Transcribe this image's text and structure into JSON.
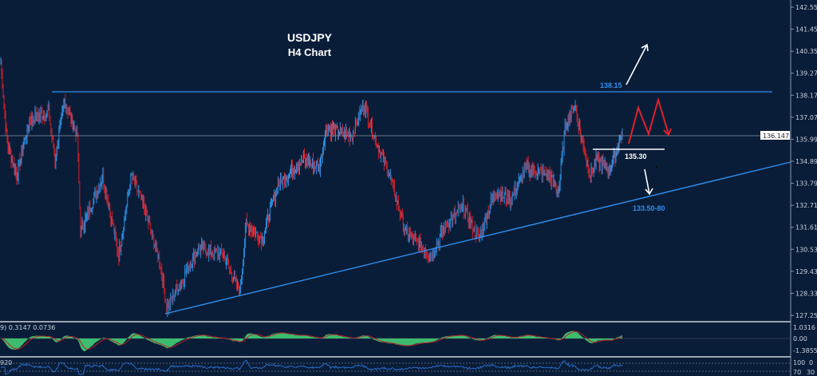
{
  "chart_data": {
    "type": "candlestick",
    "title": "USDJPY",
    "subtitle": "H4 Chart",
    "symbol": "USDJPY",
    "timeframe": "H4",
    "ylim": [
      127.25,
      142.55
    ],
    "y_ticks": [
      "142.550",
      "141.450",
      "140.350",
      "139.270",
      "138.170",
      "137.070",
      "135.990",
      "134.890",
      "133.790",
      "132.710",
      "131.610",
      "130.530",
      "129.430",
      "128.330",
      "127.250"
    ],
    "current_price": "136.147",
    "price_path_bar_price": [
      [
        0,
        139.74
      ],
      [
        2,
        135.77
      ],
      [
        5,
        134.19
      ],
      [
        9,
        136.96
      ],
      [
        15,
        137.36
      ],
      [
        17,
        134.98
      ],
      [
        20,
        137.95
      ],
      [
        24,
        136.17
      ],
      [
        25,
        131.41
      ],
      [
        32,
        134.19
      ],
      [
        37,
        130.22
      ],
      [
        41,
        134.19
      ],
      [
        45,
        132.6
      ],
      [
        50,
        129.83
      ],
      [
        52,
        127.65
      ],
      [
        57,
        129.03
      ],
      [
        62,
        130.62
      ],
      [
        70,
        130.22
      ],
      [
        75,
        128.44
      ],
      [
        77,
        131.81
      ],
      [
        82,
        131.02
      ],
      [
        87,
        133.79
      ],
      [
        95,
        134.98
      ],
      [
        100,
        134.58
      ],
      [
        102,
        136.56
      ],
      [
        110,
        136.17
      ],
      [
        114,
        137.75
      ],
      [
        117,
        136.17
      ],
      [
        122,
        134.19
      ],
      [
        127,
        131.41
      ],
      [
        135,
        130.22
      ],
      [
        140,
        131.81
      ],
      [
        145,
        132.6
      ],
      [
        150,
        131.02
      ],
      [
        155,
        133.39
      ],
      [
        160,
        133.0
      ],
      [
        165,
        134.58
      ],
      [
        172,
        134.19
      ],
      [
        175,
        133.39
      ],
      [
        177,
        136.56
      ],
      [
        180,
        137.75
      ],
      [
        182,
        136.17
      ],
      [
        185,
        134.19
      ],
      [
        187,
        134.98
      ],
      [
        191,
        134.39
      ],
      [
        195,
        136.37
      ]
    ],
    "annotations": {
      "resistance_label": "138.15",
      "support_label": "135.30",
      "target_label": "133.50-80"
    },
    "colors": {
      "up": "#2b8fe0",
      "down": "#d0202a",
      "background": "#0a1d38",
      "trendline": "#2f8ff0"
    },
    "macd": {
      "label": "9) 0.3147 0.0736",
      "ticks": [
        "1.0316",
        "0.00",
        "-1.3855"
      ]
    },
    "rsi": {
      "label": "920",
      "ticks": [
        "100",
        "70",
        "30",
        "0"
      ]
    }
  }
}
